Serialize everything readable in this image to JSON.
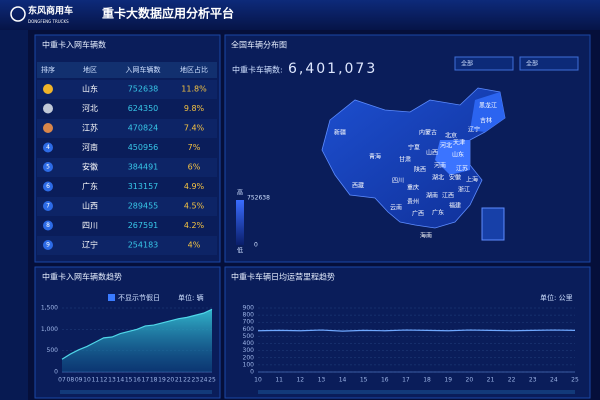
{
  "header": {
    "brand": "东风商用车",
    "brand_en": "DONGFENG TRUCKS",
    "title": "重卡大数据应用分析平台"
  },
  "ranking": {
    "title": "中重卡入网车辆数",
    "columns": [
      "排序",
      "地区",
      "入网车辆数",
      "地区占比"
    ],
    "rows": [
      {
        "region": "山东",
        "count": 752638,
        "share": "11.8%"
      },
      {
        "region": "河北",
        "count": 624350,
        "share": "9.8%"
      },
      {
        "region": "江苏",
        "count": 470824,
        "share": "7.4%"
      },
      {
        "rank": 4,
        "region": "河南",
        "count": 450956,
        "share": "7%"
      },
      {
        "rank": 5,
        "region": "安徽",
        "count": 384491,
        "share": "6%"
      },
      {
        "rank": 6,
        "region": "广东",
        "count": 313157,
        "share": "4.9%"
      },
      {
        "rank": 7,
        "region": "山西",
        "count": 289455,
        "share": "4.5%"
      },
      {
        "rank": 8,
        "region": "四川",
        "count": 267591,
        "share": "4.2%"
      },
      {
        "rank": 9,
        "region": "辽宁",
        "count": 254183,
        "share": "4%"
      }
    ]
  },
  "map": {
    "title": "全国车辆分布图",
    "total_label": "中重卡车辆数:",
    "total": "6,401,073",
    "filters": [
      "全部",
      "全部"
    ],
    "legend": {
      "high": "高",
      "max": 752638,
      "low": "低",
      "min": 0
    },
    "provinces": [
      "新疆",
      "西藏",
      "青海",
      "甘肃",
      "宁夏",
      "内蒙古",
      "黑龙江",
      "吉林",
      "辽宁",
      "北京",
      "天津",
      "河北",
      "山西",
      "山东",
      "河南",
      "陕西",
      "四川",
      "重庆",
      "湖北",
      "安徽",
      "江苏",
      "上海",
      "浙江",
      "湖南",
      "江西",
      "福建",
      "贵州",
      "云南",
      "广西",
      "广东",
      "海南"
    ]
  },
  "chart_data": [
    {
      "type": "area",
      "title": "中重卡入网车辆数趋势",
      "checkbox": "不显示节假日",
      "unit": "单位: 辆",
      "color": "#4fd6e8",
      "categories": [
        "07",
        "08",
        "09",
        "10",
        "11",
        "12",
        "13",
        "14",
        "15",
        "16",
        "17",
        "18",
        "19",
        "20",
        "21",
        "22",
        "23",
        "24",
        "25"
      ],
      "values": [
        300,
        420,
        520,
        600,
        700,
        800,
        820,
        900,
        950,
        1000,
        1080,
        1100,
        1150,
        1200,
        1250,
        1280,
        1330,
        1380,
        1470
      ],
      "ylim": [
        0,
        1500
      ],
      "yticks": [
        0,
        500,
        {
          "value": 1000,
          "label": "1,000"
        },
        {
          "value": 1500,
          "label": "1,500"
        }
      ],
      "grid": true
    },
    {
      "type": "line",
      "title": "中重卡车辆日均运营里程趋势",
      "unit": "单位: 公里",
      "color": "#6fa8ff",
      "categories": [
        "10",
        "11",
        "12",
        "13",
        "14",
        "15",
        "16",
        "17",
        "18",
        "19",
        "20",
        "21",
        "22",
        "23",
        "24",
        "25"
      ],
      "values": [
        580,
        585,
        580,
        590,
        575,
        585,
        580,
        590,
        585,
        580,
        590,
        585,
        580,
        585,
        590,
        585
      ],
      "ylim": [
        0,
        900
      ],
      "yticks": [
        0,
        100,
        200,
        300,
        400,
        500,
        600,
        700,
        800,
        900
      ],
      "grid": true
    }
  ]
}
